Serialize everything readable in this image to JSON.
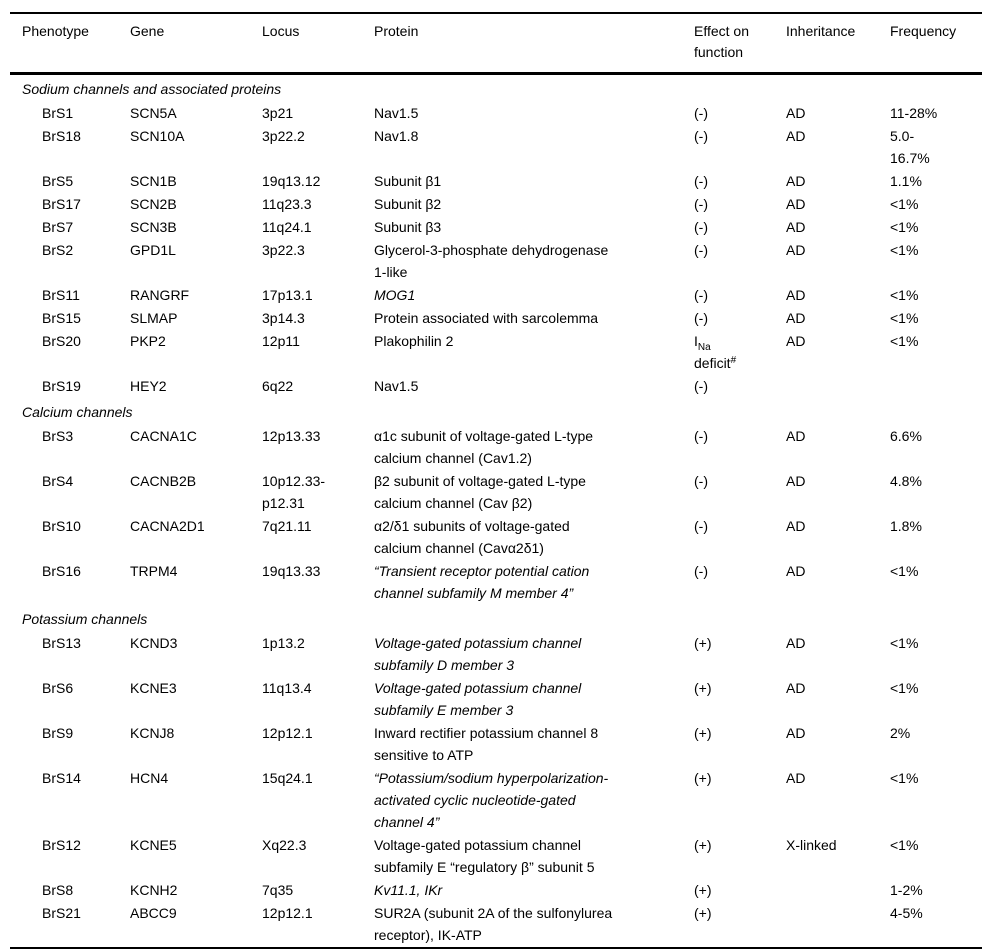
{
  "table": {
    "headers": [
      "Phenotype",
      "Gene",
      "Locus",
      "Protein",
      "Effect on function",
      "Inheritance",
      "Frequency"
    ],
    "sections": [
      {
        "title": "Sodium channels and associated proteins",
        "rows": [
          {
            "phenotype": "BrS1",
            "gene": "SCN5A",
            "locus": "3p21",
            "protein": "Nav1.5",
            "protein_italic": false,
            "effect": "(-)",
            "inheritance": "AD",
            "frequency": "11-28%"
          },
          {
            "phenotype": "BrS18",
            "gene": "SCN10A",
            "locus": "3p22.2",
            "protein": "Nav1.8",
            "protein_italic": false,
            "effect": "(-)",
            "inheritance": "AD",
            "frequency": "5.0-\n16.7%"
          },
          {
            "phenotype": "BrS5",
            "gene": "SCN1B",
            "locus": "19q13.12",
            "protein": "Subunit β1",
            "protein_italic": false,
            "effect": "(-)",
            "inheritance": "AD",
            "frequency": "1.1%"
          },
          {
            "phenotype": "BrS17",
            "gene": "SCN2B",
            "locus": "11q23.3",
            "protein": "Subunit β2",
            "protein_italic": false,
            "effect": "(-)",
            "inheritance": "AD",
            "frequency": "<1%"
          },
          {
            "phenotype": "BrS7",
            "gene": "SCN3B",
            "locus": "11q24.1",
            "protein": "Subunit β3",
            "protein_italic": false,
            "effect": "(-)",
            "inheritance": "AD",
            "frequency": "<1%"
          },
          {
            "phenotype": "BrS2",
            "gene": "GPD1L",
            "locus": "3p22.3",
            "protein": "Glycerol-3-phosphate dehydrogenase\n1-like",
            "protein_italic": false,
            "effect": "(-)",
            "inheritance": "AD",
            "frequency": "<1%"
          },
          {
            "phenotype": "BrS11",
            "gene": "RANGRF",
            "locus": "17p13.1",
            "protein": "MOG1",
            "protein_italic": true,
            "effect": "(-)",
            "inheritance": "AD",
            "frequency": "<1%"
          },
          {
            "phenotype": "BrS15",
            "gene": "SLMAP",
            "locus": "3p14.3",
            "protein": "Protein associated with sarcolemma",
            "protein_italic": false,
            "effect": "(-)",
            "inheritance": "AD",
            "frequency": "<1%"
          },
          {
            "phenotype": "BrS20",
            "gene": "PKP2",
            "locus": "12p11",
            "protein": "Plakophilin 2",
            "protein_italic": false,
            "effect": {
              "base": "I",
              "sub": "Na",
              "rest": "deficit",
              "sup": "#"
            },
            "inheritance": "AD",
            "frequency": "<1%"
          },
          {
            "phenotype": "BrS19",
            "gene": "HEY2",
            "locus": "6q22",
            "protein": "Nav1.5",
            "protein_italic": false,
            "effect": "(-)",
            "inheritance": "",
            "frequency": ""
          }
        ]
      },
      {
        "title": "Calcium channels",
        "rows": [
          {
            "phenotype": "BrS3",
            "gene": "CACNA1C",
            "locus": "12p13.33",
            "protein": "α1c subunit of voltage-gated L-type\ncalcium channel (Cav1.2)",
            "protein_italic": false,
            "effect": "(-)",
            "inheritance": "AD",
            "frequency": "6.6%"
          },
          {
            "phenotype": "BrS4",
            "gene": "CACNB2B",
            "locus": "10p12.33-\np12.31",
            "protein": "β2 subunit of voltage-gated L-type\ncalcium channel (Cav β2)",
            "protein_italic": false,
            "effect": "(-)",
            "inheritance": "AD",
            "frequency": "4.8%"
          },
          {
            "phenotype": "BrS10",
            "gene": "CACNA2D1",
            "locus": "7q21.11",
            "protein": "α2/δ1 subunits of voltage-gated\ncalcium channel (Cavα2δ1)",
            "protein_italic": false,
            "effect": "(-)",
            "inheritance": "AD",
            "frequency": "1.8%"
          },
          {
            "phenotype": "BrS16",
            "gene": "TRPM4",
            "locus": "19q13.33",
            "protein": "“Transient receptor potential cation\nchannel subfamily M member 4”",
            "protein_italic": true,
            "effect": "(-)",
            "inheritance": "AD",
            "frequency": "<1%"
          }
        ]
      },
      {
        "title": "Potassium channels",
        "rows": [
          {
            "phenotype": "BrS13",
            "gene": "KCND3",
            "locus": "1p13.2",
            "protein": "Voltage-gated potassium channel\nsubfamily D member 3",
            "protein_italic": true,
            "effect": "(+)",
            "inheritance": "AD",
            "frequency": "<1%"
          },
          {
            "phenotype": "BrS6",
            "gene": "KCNE3",
            "locus": "11q13.4",
            "protein": "Voltage-gated potassium channel\nsubfamily E member 3",
            "protein_italic": true,
            "effect": "(+)",
            "inheritance": "AD",
            "frequency": "<1%"
          },
          {
            "phenotype": "BrS9",
            "gene": "KCNJ8",
            "locus": "12p12.1",
            "protein": "Inward rectifier potassium channel 8\nsensitive to ATP",
            "protein_italic": false,
            "effect": "(+)",
            "inheritance": "AD",
            "frequency": "2%"
          },
          {
            "phenotype": "BrS14",
            "gene": "HCN4",
            "locus": "15q24.1",
            "protein": "“Potassium/sodium hyperpolarization-\nactivated cyclic nucleotide-gated\nchannel 4”",
            "protein_italic": true,
            "effect": "(+)",
            "inheritance": "AD",
            "frequency": "<1%"
          },
          {
            "phenotype": "BrS12",
            "gene": "KCNE5",
            "locus": "Xq22.3",
            "protein": "Voltage-gated potassium channel\nsubfamily E “regulatory β” subunit 5",
            "protein_italic": false,
            "effect": "(+)",
            "inheritance": "X-linked",
            "frequency": "<1%"
          },
          {
            "phenotype": "BrS8",
            "gene": "KCNH2",
            "locus": "7q35",
            "protein": "Kv11.1, IKr",
            "protein_italic": true,
            "effect": "(+)",
            "inheritance": "",
            "frequency": "1-2%"
          },
          {
            "phenotype": "BrS21",
            "gene": "ABCC9",
            "locus": "12p12.1",
            "protein": "SUR2A (subunit 2A of the sulfonylurea\nreceptor), IK-ATP",
            "protein_italic": false,
            "effect": "(+)",
            "inheritance": "",
            "frequency": "4-5%"
          }
        ]
      }
    ]
  }
}
